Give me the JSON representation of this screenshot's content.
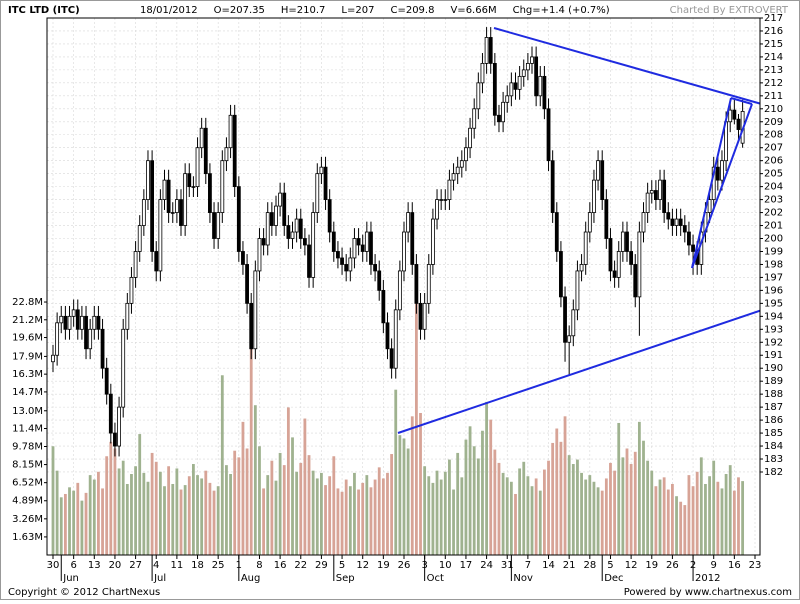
{
  "chart_data": {
    "type": "candlestick",
    "title": "ITC LTD (ITC)",
    "info": [
      "18/01/2012",
      "O=207.35",
      "H=210.7",
      "L=207",
      "C=209.8",
      "V=6.66M",
      "Chg=+1.4 (+0.7%)"
    ],
    "credit": "Charted By EXTROVERT",
    "footer_left": "Copyright © 2012 ChartNexus",
    "footer_right": "Powered by www.chartnexus.com",
    "grid": true,
    "up_color": "#ffffff",
    "down_color": "#000000",
    "volume_up_color": "#9fb28f",
    "volume_down_color": "#d7a396",
    "ylim": [
      175.6,
      217
    ],
    "yticks": [
      182,
      183,
      184,
      185,
      186,
      187,
      188,
      189,
      190,
      191,
      192,
      193,
      194,
      195,
      196,
      197,
      198,
      199,
      200,
      201,
      202,
      203,
      204,
      205,
      206,
      207,
      208,
      209,
      210,
      211,
      212,
      213,
      214,
      215,
      216,
      217
    ],
    "vlim": [
      0,
      48.4
    ],
    "vticks": [
      {
        "value": 1.63,
        "label": "1.63M"
      },
      {
        "value": 3.26,
        "label": "3.26M"
      },
      {
        "value": 4.89,
        "label": "4.89M"
      },
      {
        "value": 6.52,
        "label": "6.52M"
      },
      {
        "value": 8.15,
        "label": "8.15M"
      },
      {
        "value": 9.78,
        "label": "9.78M"
      },
      {
        "value": 11.4,
        "label": "11.4M"
      },
      {
        "value": 13,
        "label": "13.0M"
      },
      {
        "value": 14.7,
        "label": "14.7M"
      },
      {
        "value": 16.3,
        "label": "16.3M"
      },
      {
        "value": 17.9,
        "label": "17.9M"
      },
      {
        "value": 19.6,
        "label": "19.6M"
      },
      {
        "value": 21.2,
        "label": "21.2M"
      },
      {
        "value": 22.8,
        "label": "22.8M"
      }
    ],
    "categories": [
      "30",
      null,
      null,
      null,
      null,
      "6",
      null,
      null,
      null,
      null,
      "13",
      null,
      null,
      null,
      null,
      "20",
      null,
      null,
      null,
      null,
      "27",
      null,
      null,
      null,
      null,
      "4",
      null,
      null,
      null,
      null,
      "11",
      null,
      null,
      null,
      null,
      "18",
      null,
      null,
      null,
      null,
      "25",
      null,
      null,
      null,
      null,
      "1",
      null,
      null,
      null,
      null,
      "8",
      null,
      null,
      null,
      null,
      "16",
      null,
      null,
      null,
      null,
      "22",
      null,
      null,
      null,
      null,
      "29",
      null,
      null,
      null,
      null,
      "5",
      null,
      null,
      null,
      null,
      "12",
      null,
      null,
      null,
      null,
      "19",
      null,
      null,
      null,
      null,
      "26",
      null,
      null,
      null,
      null,
      "3",
      null,
      null,
      null,
      null,
      "10",
      null,
      null,
      null,
      null,
      "17",
      null,
      null,
      null,
      null,
      "24",
      null,
      null,
      null,
      null,
      "31",
      null,
      null,
      null,
      null,
      "7",
      null,
      null,
      null,
      null,
      "14",
      null,
      null,
      null,
      null,
      "21",
      null,
      null,
      null,
      null,
      "28",
      null,
      null,
      null,
      null,
      "5",
      null,
      null,
      null,
      null,
      "12",
      null,
      null,
      null,
      null,
      "19",
      null,
      null,
      null,
      null,
      "26",
      null,
      null,
      null,
      null,
      "2",
      null,
      null,
      null,
      null,
      "9",
      null,
      null,
      null,
      null,
      "16",
      null,
      null,
      null,
      null,
      "23"
    ],
    "month_ticks": [
      {
        "value": 2,
        "label": "Jun"
      },
      {
        "value": 24,
        "label": "Jul"
      },
      {
        "value": 45,
        "label": "Aug"
      },
      {
        "value": 68,
        "label": "Sep"
      },
      {
        "value": 90,
        "label": "Oct"
      },
      {
        "value": 111,
        "label": "Nov"
      },
      {
        "value": 133,
        "label": "Dec"
      },
      {
        "value": 155,
        "label": "2012"
      }
    ],
    "candles": [
      [
        190.5,
        191.8,
        189.7,
        191
      ],
      [
        191,
        194.3,
        190.2,
        193.5
      ],
      [
        193.5,
        194.8,
        192.7,
        194
      ],
      [
        194,
        194.8,
        192.2,
        193
      ],
      [
        193,
        194.8,
        192.2,
        194
      ],
      [
        194,
        195.3,
        193.2,
        194.5
      ],
      [
        194.5,
        195.3,
        192.2,
        193
      ],
      [
        193,
        194.8,
        192.2,
        194
      ],
      [
        194,
        194.8,
        190.7,
        191.5
      ],
      [
        191.5,
        193.8,
        190.7,
        193
      ],
      [
        193,
        194.8,
        192.2,
        194
      ],
      [
        194,
        194.8,
        192.2,
        193
      ],
      [
        193,
        193.8,
        189.2,
        190
      ],
      [
        190,
        190.8,
        187.2,
        188
      ],
      [
        188,
        188.8,
        184.2,
        185
      ],
      [
        185,
        185.8,
        183.2,
        184
      ],
      [
        184,
        187.8,
        183.2,
        187
      ],
      [
        187,
        193.8,
        186.2,
        193
      ],
      [
        193,
        195.8,
        192.2,
        195
      ],
      [
        195,
        197.8,
        194.2,
        197
      ],
      [
        197,
        199.8,
        196.2,
        199
      ],
      [
        199,
        201.8,
        198.2,
        201
      ],
      [
        201,
        203.8,
        200.2,
        203
      ],
      [
        203,
        206.8,
        202.2,
        206
      ],
      [
        206,
        206.8,
        198.2,
        199
      ],
      [
        199,
        199.8,
        196.7,
        197.5
      ],
      [
        197.5,
        203.8,
        196.7,
        203
      ],
      [
        203,
        205.3,
        202.2,
        204.5
      ],
      [
        204.5,
        205.3,
        201.2,
        202
      ],
      [
        202,
        202.8,
        201.2,
        202
      ],
      [
        202,
        203.8,
        201.2,
        203
      ],
      [
        203,
        203.8,
        200.2,
        201
      ],
      [
        201,
        205.8,
        200.2,
        205
      ],
      [
        205,
        205.8,
        203.2,
        204
      ],
      [
        204,
        204.8,
        203.2,
        204
      ],
      [
        204,
        207.8,
        203.2,
        207
      ],
      [
        207,
        209.3,
        206.2,
        208.5
      ],
      [
        208.5,
        209.3,
        204.2,
        205
      ],
      [
        205,
        205.8,
        201.2,
        202
      ],
      [
        202,
        202.8,
        199.2,
        200
      ],
      [
        200,
        202.8,
        199.2,
        202
      ],
      [
        202,
        206.8,
        201.2,
        206
      ],
      [
        206,
        207.8,
        205.2,
        207
      ],
      [
        207,
        210.3,
        206.2,
        209.5
      ],
      [
        209.5,
        210.3,
        203.2,
        204
      ],
      [
        204,
        204.8,
        198.2,
        199
      ],
      [
        199,
        199.8,
        197.2,
        198
      ],
      [
        198,
        198.8,
        194.2,
        195
      ],
      [
        195,
        195.8,
        190.7,
        191.5
      ],
      [
        191.5,
        198.3,
        190.7,
        197.5
      ],
      [
        197.5,
        200.8,
        196.7,
        200
      ],
      [
        200,
        200.8,
        198.7,
        199.5
      ],
      [
        199.5,
        202.8,
        198.7,
        202
      ],
      [
        202,
        202.8,
        200.2,
        201
      ],
      [
        201,
        203.3,
        200.2,
        202.5
      ],
      [
        202.5,
        204.3,
        201.7,
        203.5
      ],
      [
        203.5,
        204.3,
        200.2,
        201
      ],
      [
        201,
        201.8,
        199.2,
        200
      ],
      [
        200,
        201.3,
        199.2,
        200.5
      ],
      [
        200.5,
        202.3,
        199.7,
        201.5
      ],
      [
        201.5,
        202.3,
        199.2,
        200
      ],
      [
        200,
        200.8,
        198.7,
        199.5
      ],
      [
        199.5,
        200.3,
        196.2,
        197
      ],
      [
        197,
        202.8,
        196.2,
        202
      ],
      [
        202,
        205.8,
        201.2,
        205
      ],
      [
        205,
        206.3,
        204.2,
        205.5
      ],
      [
        205.5,
        206.3,
        202.2,
        203
      ],
      [
        203,
        203.8,
        199.7,
        200.5
      ],
      [
        200.5,
        201.3,
        198.2,
        199
      ],
      [
        199,
        199.8,
        197.7,
        198.5
      ],
      [
        198.5,
        199.3,
        197.2,
        198
      ],
      [
        198,
        198.8,
        196.7,
        197.5
      ],
      [
        197.5,
        199.3,
        196.7,
        198.5
      ],
      [
        198.5,
        200.8,
        197.7,
        200
      ],
      [
        200,
        200.8,
        198.7,
        199.5
      ],
      [
        199.5,
        200.3,
        198.2,
        199
      ],
      [
        199,
        201.3,
        198.2,
        200.5
      ],
      [
        200.5,
        201.3,
        197.2,
        198
      ],
      [
        198,
        198.8,
        196.7,
        197.5
      ],
      [
        197.5,
        198.3,
        195.2,
        196
      ],
      [
        196,
        196.8,
        192.7,
        193.5
      ],
      [
        193.5,
        194.3,
        190.7,
        191.5
      ],
      [
        191.5,
        192.3,
        189.2,
        190
      ],
      [
        190,
        195.3,
        189.2,
        194.5
      ],
      [
        194.5,
        198.3,
        193.7,
        197.5
      ],
      [
        197.5,
        201.3,
        196.7,
        200.5
      ],
      [
        200.5,
        202.8,
        199.7,
        202
      ],
      [
        202,
        202.8,
        197.2,
        198
      ],
      [
        198,
        198.8,
        194.2,
        195
      ],
      [
        195,
        195.8,
        192.2,
        193
      ],
      [
        193,
        195.8,
        192.2,
        195
      ],
      [
        195,
        198.8,
        194.2,
        198
      ],
      [
        198,
        202.3,
        197.2,
        201.5
      ],
      [
        201.5,
        203.8,
        200.7,
        203
      ],
      [
        203,
        203.8,
        202.2,
        203
      ],
      [
        203,
        203.8,
        202.2,
        203
      ],
      [
        203,
        205.3,
        202.2,
        204.5
      ],
      [
        204.5,
        205.8,
        203.7,
        205
      ],
      [
        205,
        206.3,
        204.2,
        205.5
      ],
      [
        205.5,
        206.8,
        204.7,
        206
      ],
      [
        206,
        207.8,
        205.2,
        207
      ],
      [
        207,
        209.3,
        206.2,
        208.5
      ],
      [
        208.5,
        210.8,
        207.7,
        210
      ],
      [
        210,
        212.8,
        209.2,
        212
      ],
      [
        212,
        214.3,
        211.2,
        213.5
      ],
      [
        213.5,
        216.3,
        212.7,
        215.5
      ],
      [
        215.5,
        216.3,
        212.7,
        213.5
      ],
      [
        213.5,
        214.3,
        208.7,
        209.5
      ],
      [
        209.5,
        210.3,
        208.2,
        209
      ],
      [
        209,
        211.3,
        208.2,
        210.5
      ],
      [
        210.5,
        211.8,
        209.7,
        211
      ],
      [
        211,
        212.8,
        210.2,
        212
      ],
      [
        212,
        212.8,
        210.7,
        211.5
      ],
      [
        211.5,
        213.3,
        210.7,
        212.5
      ],
      [
        212.5,
        213.8,
        211.7,
        213
      ],
      [
        213,
        214.3,
        212.2,
        213.5
      ],
      [
        213.5,
        214.8,
        212.7,
        214
      ],
      [
        214,
        214.8,
        210.2,
        211
      ],
      [
        211,
        213.3,
        210.2,
        212.5
      ],
      [
        212.5,
        213.3,
        209.2,
        210
      ],
      [
        210,
        210.8,
        205.2,
        206
      ],
      [
        206,
        206.8,
        201.2,
        202
      ],
      [
        202,
        202.8,
        198.2,
        199
      ],
      [
        199,
        199.8,
        194.7,
        195.5
      ],
      [
        195.5,
        196.3,
        190.5,
        192
      ],
      [
        192,
        193.3,
        189.5,
        192.5
      ],
      [
        192.5,
        195.3,
        191.7,
        194.5
      ],
      [
        194.5,
        198.3,
        193.7,
        197.5
      ],
      [
        197.5,
        198.8,
        196.7,
        198
      ],
      [
        198,
        201.3,
        197.2,
        200.5
      ],
      [
        200.5,
        202.8,
        199.7,
        202
      ],
      [
        202,
        205.3,
        201.2,
        204.5
      ],
      [
        204.5,
        206.8,
        203.7,
        206
      ],
      [
        206,
        206.8,
        202.2,
        203
      ],
      [
        203,
        203.8,
        199.2,
        200
      ],
      [
        200,
        200.8,
        196.7,
        197.5
      ],
      [
        197.5,
        198.3,
        196.2,
        197
      ],
      [
        197,
        199.8,
        196.2,
        199
      ],
      [
        199,
        201.3,
        198.2,
        200.5
      ],
      [
        200.5,
        201.3,
        198.2,
        199
      ],
      [
        199,
        199.8,
        197.2,
        198
      ],
      [
        198,
        198.8,
        194.7,
        195.5
      ],
      [
        195.5,
        201.3,
        192.5,
        200.5
      ],
      [
        200.5,
        202.8,
        199.7,
        202
      ],
      [
        202,
        204.3,
        201.2,
        203.5
      ],
      [
        203.5,
        204.5,
        202.7,
        203.7
      ],
      [
        203.7,
        204.5,
        202.2,
        203
      ],
      [
        203,
        205.3,
        202.2,
        204.5
      ],
      [
        204.5,
        205.3,
        201.2,
        202
      ],
      [
        202,
        202.8,
        200.7,
        201.5
      ],
      [
        201.5,
        202.3,
        200.2,
        201
      ],
      [
        201,
        202.3,
        200.2,
        201.5
      ],
      [
        201.5,
        202.3,
        200.2,
        201
      ],
      [
        201,
        201.8,
        199.7,
        200.5
      ],
      [
        200.5,
        201.3,
        198.7,
        199.5
      ],
      [
        199.5,
        200.3,
        197.2,
        199
      ],
      [
        199,
        199.8,
        197.2,
        198
      ],
      [
        198,
        201.3,
        197.2,
        200.5
      ],
      [
        200.5,
        202.8,
        199.7,
        202
      ],
      [
        202,
        203.8,
        201.2,
        203
      ],
      [
        203,
        206.3,
        202.2,
        205.5
      ],
      [
        205.5,
        206.3,
        203.7,
        204.5
      ],
      [
        204.5,
        206.8,
        203.7,
        206
      ],
      [
        206,
        209.8,
        205.2,
        209
      ],
      [
        209,
        210.7,
        208.2,
        209.9
      ],
      [
        209.9,
        210.7,
        208.8,
        209.2
      ],
      [
        209.2,
        209.6,
        207.5,
        208.4
      ],
      [
        207.35,
        210.7,
        207,
        209.8
      ],
      null,
      null,
      null
    ],
    "volume": [
      9.8,
      7.6,
      5.2,
      5.5,
      6.1,
      5.8,
      6.5,
      4.9,
      5.6,
      7.2,
      6.8,
      7.5,
      6.0,
      8.9,
      10.2,
      9.6,
      7.8,
      8.5,
      6.4,
      7.3,
      8.0,
      10.9,
      7.4,
      6.6,
      9.2,
      8.4,
      7.5,
      6.2,
      8.0,
      6.4,
      7.8,
      5.9,
      6.3,
      7.1,
      8.2,
      7.2,
      6.9,
      7.6,
      6.5,
      5.8,
      6.2,
      16.2,
      8.1,
      7.3,
      9.4,
      8.8,
      12.0,
      9.6,
      20.7,
      13.5,
      9.8,
      6.0,
      7.2,
      8.5,
      6.7,
      9.2,
      8.1,
      13.3,
      10.6,
      7.5,
      8.3,
      12.3,
      9.0,
      7.6,
      6.9,
      7.4,
      6.3,
      7.1,
      8.9,
      6.0,
      5.7,
      6.8,
      6.2,
      7.4,
      5.9,
      6.5,
      7.2,
      6.1,
      6.8,
      7.9,
      6.9,
      7.4,
      9.1,
      14.9,
      10.8,
      10.5,
      9.6,
      12.5,
      23.0,
      12.8,
      8.0,
      7.1,
      6.5,
      7.6,
      6.8,
      7.5,
      8.6,
      5.9,
      9.2,
      7.0,
      10.4,
      11.6,
      9.8,
      8.7,
      11.2,
      13.8,
      12.2,
      9.5,
      8.3,
      7.4,
      7.0,
      6.6,
      5.5,
      7.8,
      8.4,
      7.1,
      6.2,
      6.9,
      5.8,
      7.7,
      8.5,
      10.1,
      11.4,
      10.2,
      12.5,
      9.0,
      8.2,
      8.6,
      7.4,
      6.8,
      7.2,
      6.6,
      6.1,
      5.8,
      6.9,
      8.3,
      7.6,
      11.9,
      8.8,
      9.6,
      8.2,
      9.3,
      12.0,
      10.3,
      8.5,
      7.6,
      6.2,
      6.8,
      7.0,
      5.9,
      6.4,
      5.3,
      4.8,
      4.5,
      7.2,
      6.2,
      7.5,
      8.8,
      6.4,
      7.1,
      8.5,
      6.6,
      6.0,
      7.3,
      8.1,
      5.8,
      7.0,
      6.66,
      null,
      null,
      null
    ]
  }
}
